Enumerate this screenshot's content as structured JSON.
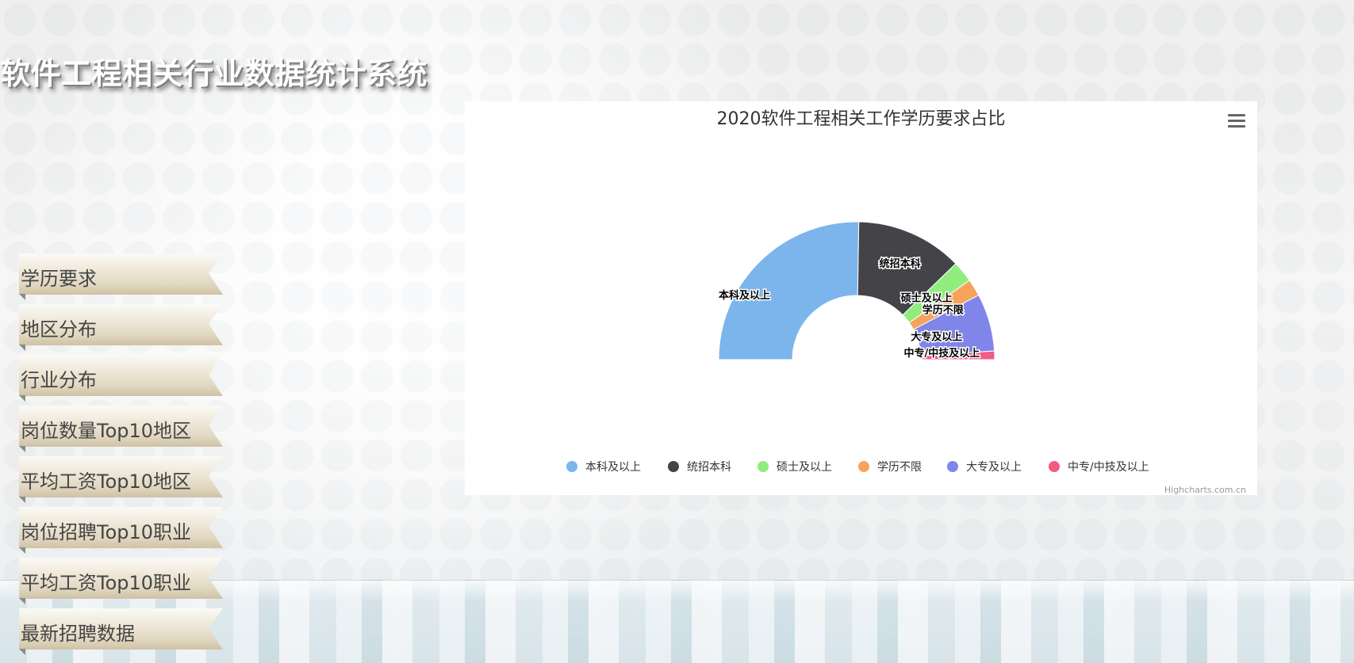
{
  "page": {
    "title": "软件工程相关行业数据统计系统"
  },
  "nav": {
    "items": [
      {
        "label": "学历要求"
      },
      {
        "label": "地区分布"
      },
      {
        "label": "行业分布"
      },
      {
        "label": "岗位数量Top10地区"
      },
      {
        "label": "平均工资Top10地区"
      },
      {
        "label": "岗位招聘Top10职业"
      },
      {
        "label": "平均工资Top10职业"
      },
      {
        "label": "最新招聘数据"
      }
    ]
  },
  "chart_menu": {
    "icon": "hamburger-menu-icon"
  },
  "chart_data": {
    "type": "pie",
    "variant": "semi-donut",
    "title": "2020软件工程相关工作学历要求占比",
    "credits": "Highcharts.com.cn",
    "legend_position": "bottom-center",
    "series": [
      {
        "name": "本科及以上",
        "value": 50.5,
        "color": "#7cb5ec"
      },
      {
        "name": "统招本科",
        "value": 25.0,
        "color": "#434348"
      },
      {
        "name": "硕士及以上",
        "value": 5.0,
        "color": "#90ed7d"
      },
      {
        "name": "学历不限",
        "value": 4.0,
        "color": "#f7a35c"
      },
      {
        "name": "大专及以上",
        "value": 13.5,
        "color": "#8085e9"
      },
      {
        "name": "中专/中技及以上",
        "value": 2.0,
        "color": "#f15c80"
      }
    ]
  }
}
